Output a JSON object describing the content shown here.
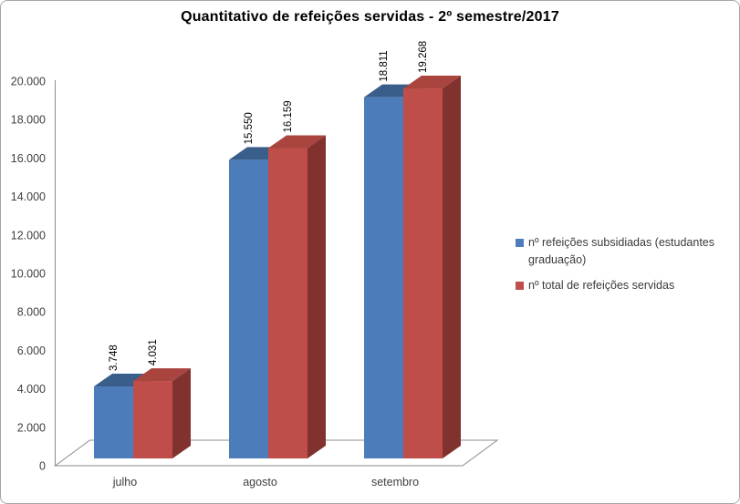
{
  "chart_data": {
    "type": "bar",
    "subtype": "3d-clustered-column",
    "title": "Quantitativo de refeições servidas - 2º semestre/2017",
    "categories": [
      "julho",
      "agosto",
      "setembro"
    ],
    "series": [
      {
        "name": "nº refeições subsidiadas (estudantes graduação)",
        "color": "#4D7CBA",
        "face_top": "#3A5E8A",
        "face_side": "#2E4B6E",
        "values": [
          3748,
          15550,
          18811
        ],
        "value_labels": [
          "3.748",
          "15.550",
          "18.811"
        ]
      },
      {
        "name": "nº total de refeições servidas",
        "color": "#BF4E4B",
        "face_top": "#A9443F",
        "face_side": "#81322F",
        "values": [
          4031,
          16159,
          19268
        ],
        "value_labels": [
          "4.031",
          "16.159",
          "19.268"
        ]
      }
    ],
    "y_axis": {
      "min": 0,
      "max": 20000,
      "step": 2000,
      "tick_labels": [
        "0",
        "2.000",
        "4.000",
        "6.000",
        "8.000",
        "10.000",
        "12.000",
        "14.000",
        "16.000",
        "18.000",
        "20.000"
      ]
    },
    "x_axis": {
      "labels": [
        "julho",
        "agosto",
        "setembro"
      ]
    },
    "legend_position": "right",
    "gridlines": false,
    "data_label_rotation": -90,
    "axis_color": "#8C8C8C",
    "text_color": "#3F3F3F",
    "data_label_color": "#000000"
  }
}
